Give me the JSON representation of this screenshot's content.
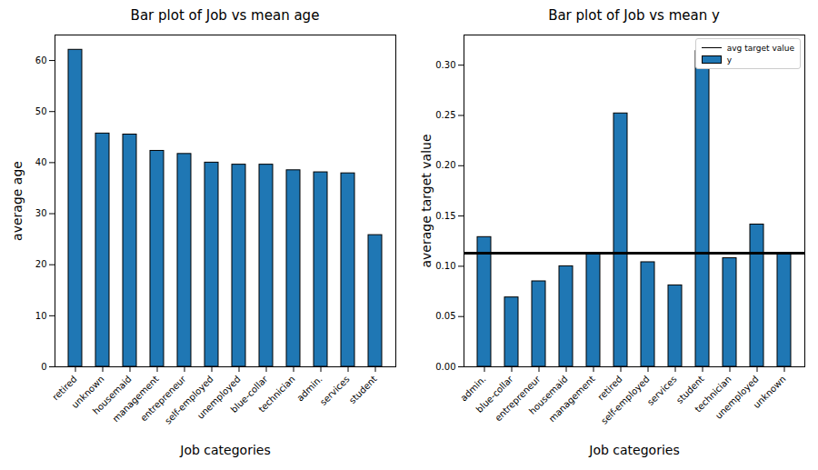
{
  "chart_data": [
    {
      "type": "bar",
      "title": "Bar plot of Job vs mean age",
      "x_label": "Job categories",
      "y_label": "average age",
      "categories": [
        "retired",
        "unknown",
        "housemaid",
        "management",
        "entrepreneur",
        "self-employed",
        "unemployed",
        "blue-collar",
        "technician",
        "admin.",
        "services",
        "student"
      ],
      "values": [
        62.1,
        45.7,
        45.5,
        42.3,
        41.7,
        40.0,
        39.6,
        39.6,
        38.5,
        38.1,
        37.9,
        25.8
      ],
      "color": "#1f77b4",
      "ylim": [
        0,
        65
      ],
      "yticks": [
        0,
        10,
        20,
        30,
        40,
        50,
        60
      ]
    },
    {
      "type": "bar",
      "title": "Bar plot of Job vs mean y",
      "x_label": "Job categories",
      "y_label": "average target value",
      "categories": [
        "admin.",
        "blue-collar",
        "entrepreneur",
        "housemaid",
        "management",
        "retired",
        "self-employed",
        "services",
        "student",
        "technician",
        "unemployed",
        "unknown"
      ],
      "series": [
        {
          "name": "avg target value",
          "type": "line",
          "color": "#000000",
          "values": [
            0.113,
            0.113,
            0.113,
            0.113,
            0.113,
            0.113,
            0.113,
            0.113,
            0.113,
            0.113,
            0.113,
            0.113
          ]
        },
        {
          "name": "y",
          "type": "bar",
          "color": "#1f77b4",
          "values": [
            0.129,
            0.069,
            0.085,
            0.1,
            0.112,
            0.252,
            0.104,
            0.081,
            0.314,
            0.108,
            0.1415,
            0.112
          ]
        }
      ],
      "legend": "upper right",
      "ylim": [
        0,
        0.33
      ],
      "yticks": [
        {
          "value": 0,
          "label": "0.00"
        },
        {
          "value": 0.05,
          "label": "0.05"
        },
        {
          "value": 0.1,
          "label": "0.10"
        },
        {
          "value": 0.15,
          "label": "0.15"
        },
        {
          "value": 0.2,
          "label": "0.20"
        },
        {
          "value": 0.25,
          "label": "0.25"
        },
        {
          "value": 0.3,
          "label": "0.30"
        }
      ]
    }
  ]
}
